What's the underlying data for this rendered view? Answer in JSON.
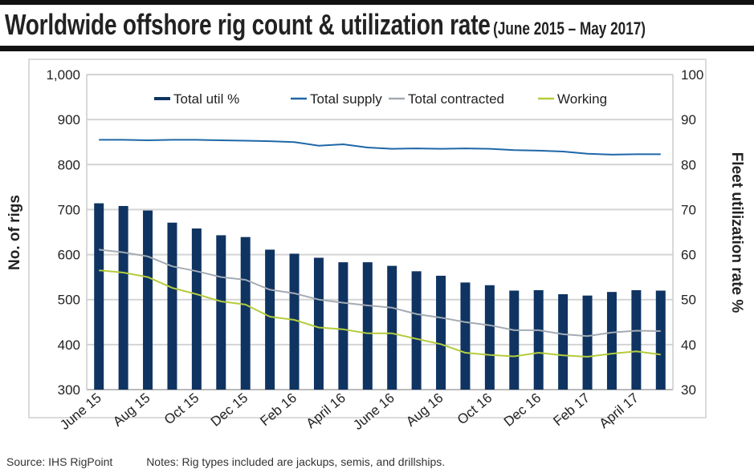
{
  "title": "Worldwide offshore rig count & utilization rate",
  "subtitle": "(June 2015 – May 2017)",
  "footer": {
    "source": "Source: IHS RigPoint",
    "notes": "Notes: Rig types included are jackups, semis, and drillships."
  },
  "chart_data": {
    "type": "bar+line",
    "title": "Worldwide offshore rig count & utilization rate",
    "ylabel": "No. of rigs",
    "y2label": "Fleet utilization rate %",
    "ylim": [
      300,
      1000
    ],
    "y2lim": [
      30,
      100
    ],
    "yticks": [
      "300",
      "400",
      "500",
      "600",
      "700",
      "800",
      "900",
      "1,000"
    ],
    "y2ticks": [
      "30",
      "40",
      "50",
      "60",
      "70",
      "80",
      "90",
      "100"
    ],
    "grid": true,
    "legend": "top",
    "categories": [
      "Jun 15",
      "Jul 15",
      "Aug 15",
      "Sep 15",
      "Oct 15",
      "Nov 15",
      "Dec 15",
      "Jan 16",
      "Feb 16",
      "Mar 16",
      "Apr 16",
      "May 16",
      "Jun 16",
      "Jul 16",
      "Aug 16",
      "Sep 16",
      "Oct 16",
      "Nov 16",
      "Dec 16",
      "Jan 17",
      "Feb 17",
      "Mar 17",
      "Apr 17",
      "May 17"
    ],
    "xtick_labels": [
      "June 15",
      "Aug 15",
      "Oct 15",
      "Dec 15",
      "Feb 16",
      "April 16",
      "June 16",
      "Aug 16",
      "Oct 16",
      "Dec 16",
      "Feb 17",
      "April 17"
    ],
    "series": [
      {
        "name": "Total util %",
        "type": "bar",
        "axis": "right",
        "color": "#0f3462",
        "values": [
          71.4,
          70.8,
          69.8,
          67.1,
          65.8,
          64.3,
          63.9,
          61.1,
          60.2,
          59.3,
          58.3,
          58.3,
          57.5,
          56.3,
          55.3,
          53.8,
          53.2,
          52.0,
          52.1,
          51.2,
          50.9,
          51.7,
          52.1,
          52.0
        ]
      },
      {
        "name": "Total supply",
        "type": "line",
        "axis": "left",
        "color": "#1f67a8",
        "values": [
          855,
          855,
          854,
          855,
          855,
          854,
          853,
          852,
          850,
          842,
          845,
          838,
          835,
          836,
          835,
          836,
          835,
          832,
          831,
          829,
          824,
          822,
          823,
          823
        ]
      },
      {
        "name": "Total contracted",
        "type": "line",
        "axis": "left",
        "color": "#a3abb3",
        "values": [
          611,
          605,
          596,
          574,
          563,
          550,
          544,
          522,
          514,
          500,
          493,
          487,
          482,
          468,
          460,
          450,
          443,
          432,
          432,
          423,
          419,
          427,
          431,
          430
        ]
      },
      {
        "name": "Working",
        "type": "line",
        "axis": "left",
        "color": "#b4cc3c",
        "values": [
          565,
          560,
          550,
          526,
          512,
          496,
          489,
          462,
          455,
          438,
          434,
          425,
          425,
          413,
          401,
          382,
          377,
          374,
          382,
          376,
          373,
          380,
          385,
          378
        ]
      }
    ]
  }
}
